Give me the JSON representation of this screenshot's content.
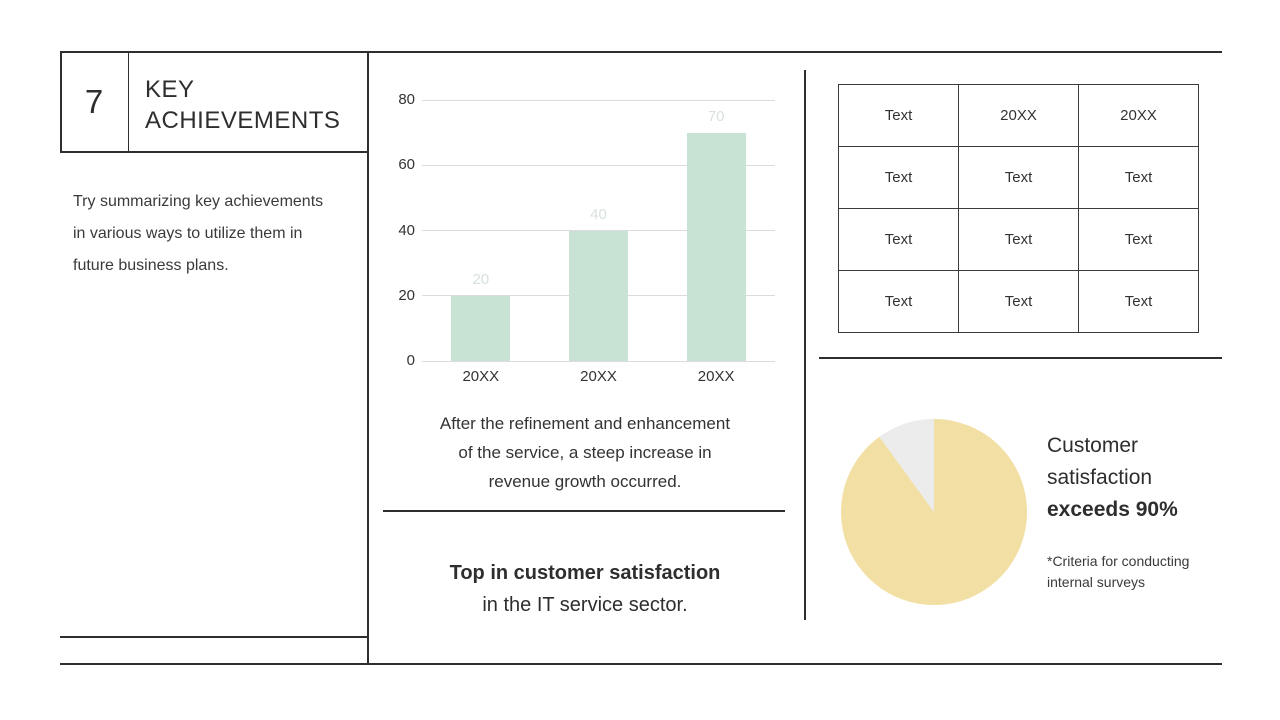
{
  "slide": {
    "page_number": "7",
    "title_lines": [
      "KEY",
      "ACHIEVEMENTS"
    ],
    "intro_lines": [
      "Try summarizing key achievements",
      "in various ways to utilize them in",
      "future business plans."
    ]
  },
  "middle": {
    "caption_lines": [
      "After the refinement and enhancement",
      "of the service, a steep increase in",
      "revenue growth occurred."
    ],
    "statement_bold": "Top in customer satisfaction",
    "statement_regular": "in the IT service sector."
  },
  "right": {
    "table": {
      "rows": [
        [
          "Text",
          "20XX",
          "20XX"
        ],
        [
          "Text",
          "Text",
          "Text"
        ],
        [
          "Text",
          "Text",
          "Text"
        ],
        [
          "Text",
          "Text",
          "Text"
        ]
      ]
    },
    "pie_caption": {
      "lines_regular": [
        "Customer",
        "satisfaction"
      ],
      "line_bold": "exceeds 90%",
      "footnote_lines": [
        "*Criteria for conducting",
        "internal surveys"
      ]
    }
  },
  "colors": {
    "bar_fill": "#c8e2d4",
    "bar_label": "#d7e1de",
    "grid": "#dcdcdc",
    "pie_main": "#f2dfa3",
    "pie_rest": "#ececec",
    "line": "#2e2e2e",
    "text": "#333333"
  },
  "chart_data": [
    {
      "type": "bar",
      "title": "",
      "xlabel": "",
      "ylabel": "",
      "categories": [
        "20XX",
        "20XX",
        "20XX"
      ],
      "values": [
        20,
        40,
        70
      ],
      "data_labels": [
        "20",
        "40",
        "70"
      ],
      "yticks": [
        0,
        20,
        40,
        60,
        80
      ],
      "ylim": [
        0,
        80
      ],
      "grid": true,
      "legend": false,
      "bar_color": "#c8e2d4",
      "label_color": "#d7e1de"
    },
    {
      "type": "pie",
      "labels": [
        "customer-satisfaction",
        "remainder"
      ],
      "values": [
        90,
        10
      ],
      "colors": [
        "#f2dfa3",
        "#ececec"
      ],
      "start_angle_deg": 0,
      "direction": "clockwise"
    }
  ]
}
